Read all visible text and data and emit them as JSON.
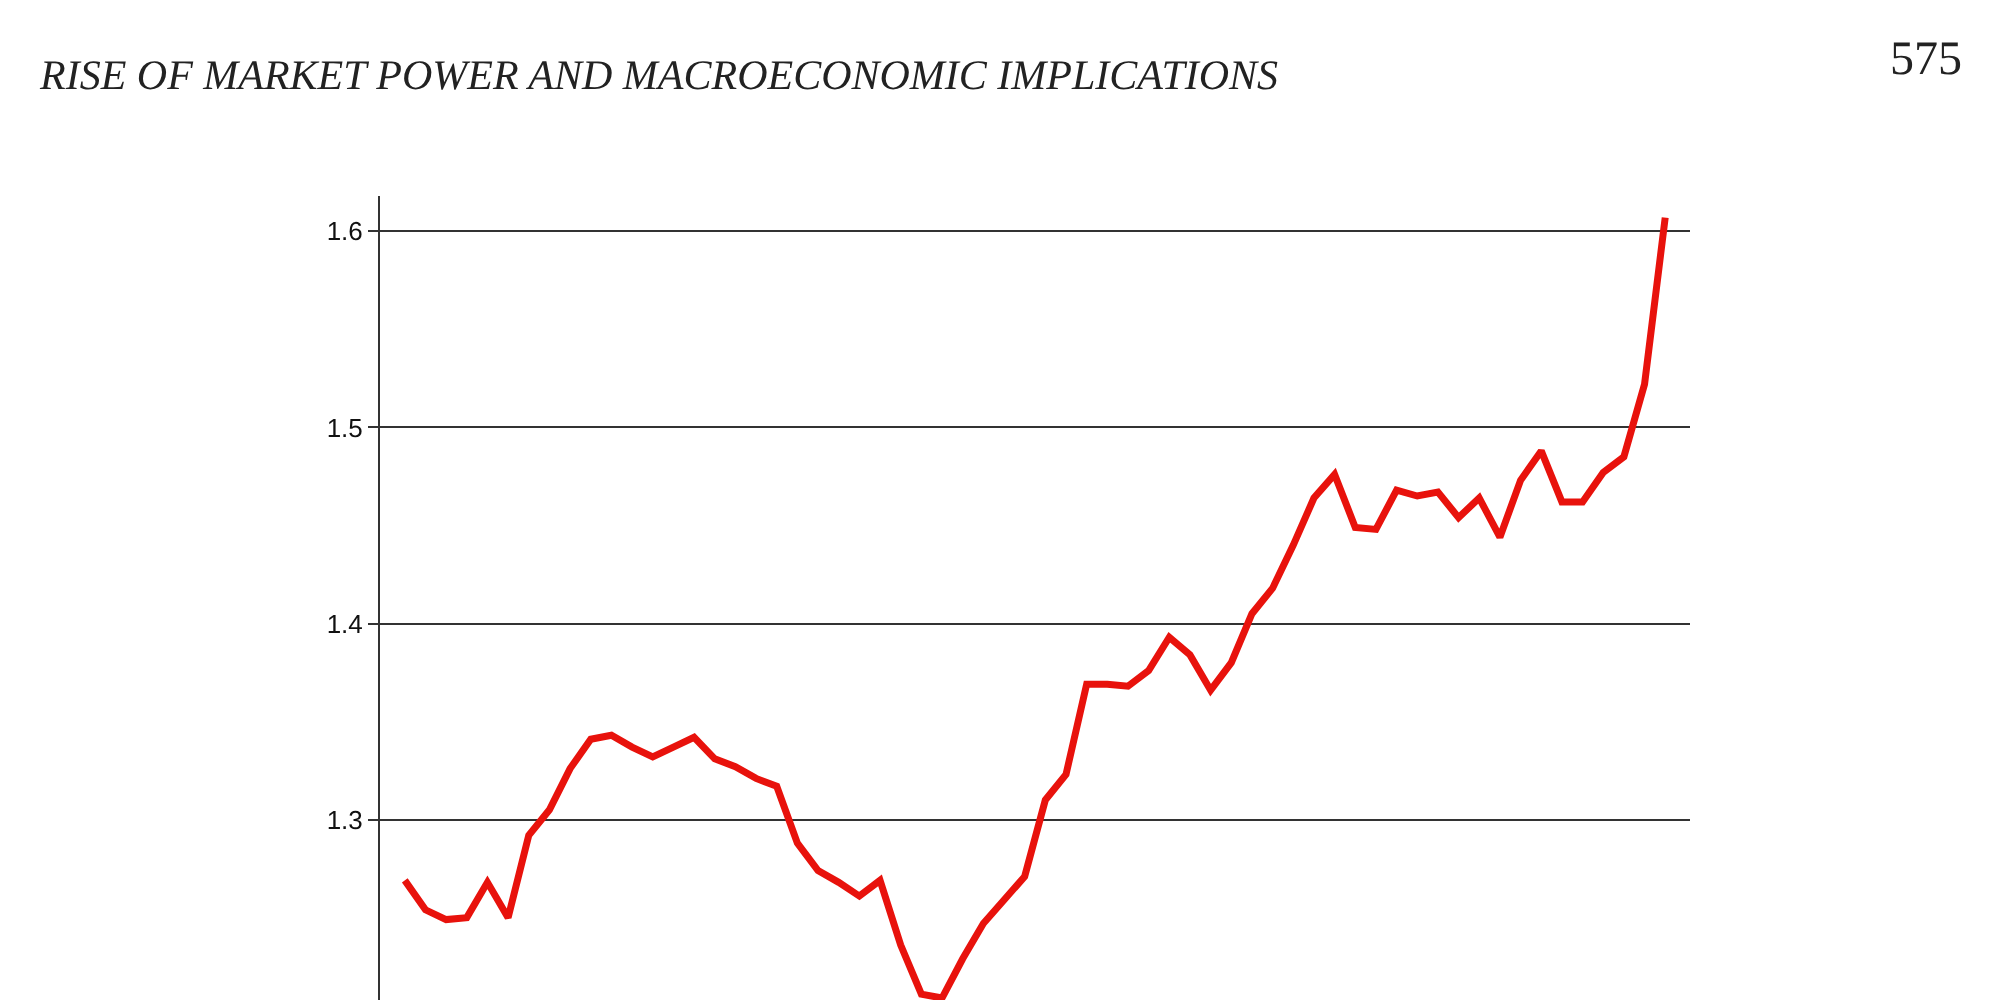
{
  "chart_data": {
    "type": "line",
    "title": "RISE OF MARKET POWER AND MACROECONOMIC IMPLICATIONS",
    "annotations": [
      "575"
    ],
    "categories": [
      null,
      null,
      null,
      null,
      null,
      null,
      null,
      null,
      null,
      null,
      null,
      null,
      null,
      null,
      null,
      null,
      null,
      null,
      null,
      null,
      null,
      null,
      null,
      null,
      null,
      null,
      null,
      null,
      null,
      null,
      null,
      null,
      null,
      null,
      null,
      null,
      null,
      null,
      null,
      null,
      null,
      null,
      null,
      null,
      null,
      null,
      null,
      null,
      null,
      null,
      null,
      null,
      null,
      null,
      null,
      null,
      null,
      null,
      null,
      null,
      null,
      null
    ],
    "series": [
      {
        "color": "#e8120c",
        "values": [
          1.269,
          1.254,
          1.249,
          1.25,
          1.268,
          1.25,
          1.292,
          1.305,
          1.326,
          1.341,
          1.343,
          1.337,
          1.332,
          1.337,
          1.342,
          1.331,
          1.327,
          1.321,
          1.317,
          1.288,
          1.274,
          1.268,
          1.261,
          1.269,
          1.236,
          1.211,
          1.209,
          1.229,
          1.247,
          1.259,
          1.271,
          1.31,
          1.323,
          1.369,
          1.369,
          1.368,
          1.376,
          1.393,
          1.384,
          1.366,
          1.38,
          1.405,
          1.418,
          1.44,
          1.464,
          1.476,
          1.449,
          1.448,
          1.468,
          1.465,
          1.467,
          1.454,
          1.464,
          1.444,
          1.473,
          1.488,
          1.462,
          1.462,
          1.477,
          1.485,
          1.522,
          1.607
        ]
      }
    ],
    "ylim": [
      1.208,
      1.618
    ],
    "yticks": [
      1.3,
      1.4,
      1.5,
      1.6
    ],
    "grid": "y",
    "tick_labels": "y",
    "marker": "none",
    "line_style": "solid"
  }
}
